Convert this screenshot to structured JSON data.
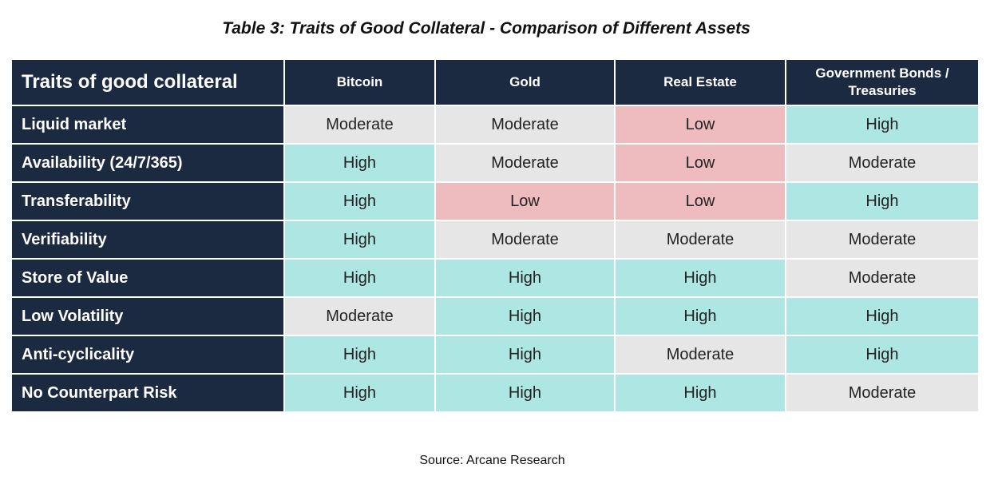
{
  "title": "Table 3: Traits of Good Collateral - Comparison of Different Assets",
  "colors": {
    "header_bg": "#1b2a41",
    "high": "#ade6e2",
    "moderate": "#e6e6e6",
    "low": "#eebcbf"
  },
  "table": {
    "headers": [
      "Traits of good collateral",
      "Bitcoin",
      "Gold",
      "Real Estate",
      "Government Bonds / Treasuries"
    ],
    "rows": [
      {
        "trait": "Liquid market",
        "values": [
          "Moderate",
          "Moderate",
          "Low",
          "High"
        ]
      },
      {
        "trait": "Availability (24/7/365)",
        "values": [
          "High",
          "Moderate",
          "Low",
          "Moderate"
        ]
      },
      {
        "trait": "Transferability",
        "values": [
          "High",
          "Low",
          "Low",
          "High"
        ]
      },
      {
        "trait": "Verifiability",
        "values": [
          "High",
          "Moderate",
          "Moderate",
          "Moderate"
        ]
      },
      {
        "trait": "Store of Value",
        "values": [
          "High",
          "High",
          "High",
          "Moderate"
        ]
      },
      {
        "trait": "Low Volatility",
        "values": [
          "Moderate",
          "High",
          "High",
          "High"
        ]
      },
      {
        "trait": "Anti-cyclicality",
        "values": [
          "High",
          "High",
          "Moderate",
          "High"
        ]
      },
      {
        "trait": "No Counterpart Risk",
        "values": [
          "High",
          "High",
          "High",
          "Moderate"
        ]
      }
    ]
  },
  "source": "Source: Arcane Research"
}
